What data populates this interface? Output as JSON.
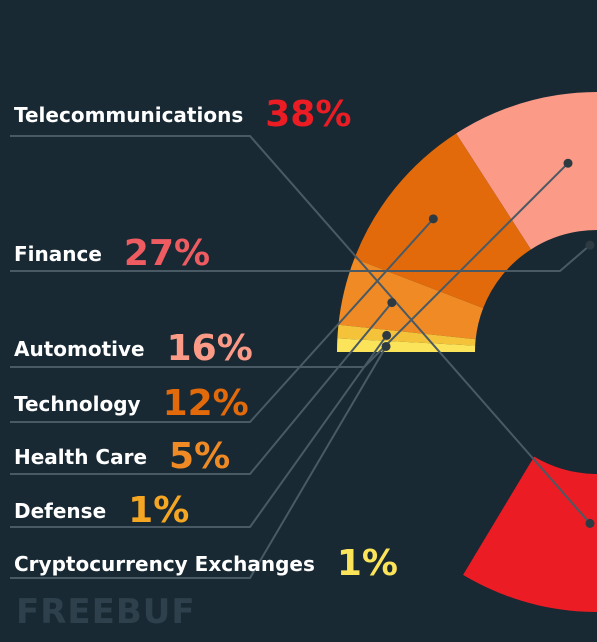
{
  "chart_data": {
    "type": "pie",
    "categories": [
      "Telecommunications",
      "Finance",
      "Automotive",
      "Technology",
      "Health Care",
      "Defense",
      "Cryptocurrency Exchanges"
    ],
    "values": [
      38,
      27,
      16,
      12,
      5,
      1,
      1
    ],
    "value_labels": [
      "38%",
      "27%",
      "16%",
      "12%",
      "5%",
      "1%",
      "1%"
    ],
    "colors": [
      "#ec1c24",
      "#ee5c62",
      "#fb9a87",
      "#e36a0b",
      "#f08a25",
      "#f5c33a",
      "#fbe35a"
    ],
    "label_colors": [
      "#ec1c24",
      "#ee5c62",
      "#fb9a87",
      "#e36a0b",
      "#f08a25",
      "#f5a623",
      "#fbe35a"
    ],
    "donut": true,
    "legend": "left, with leader lines"
  },
  "watermark": "FREEBUF"
}
